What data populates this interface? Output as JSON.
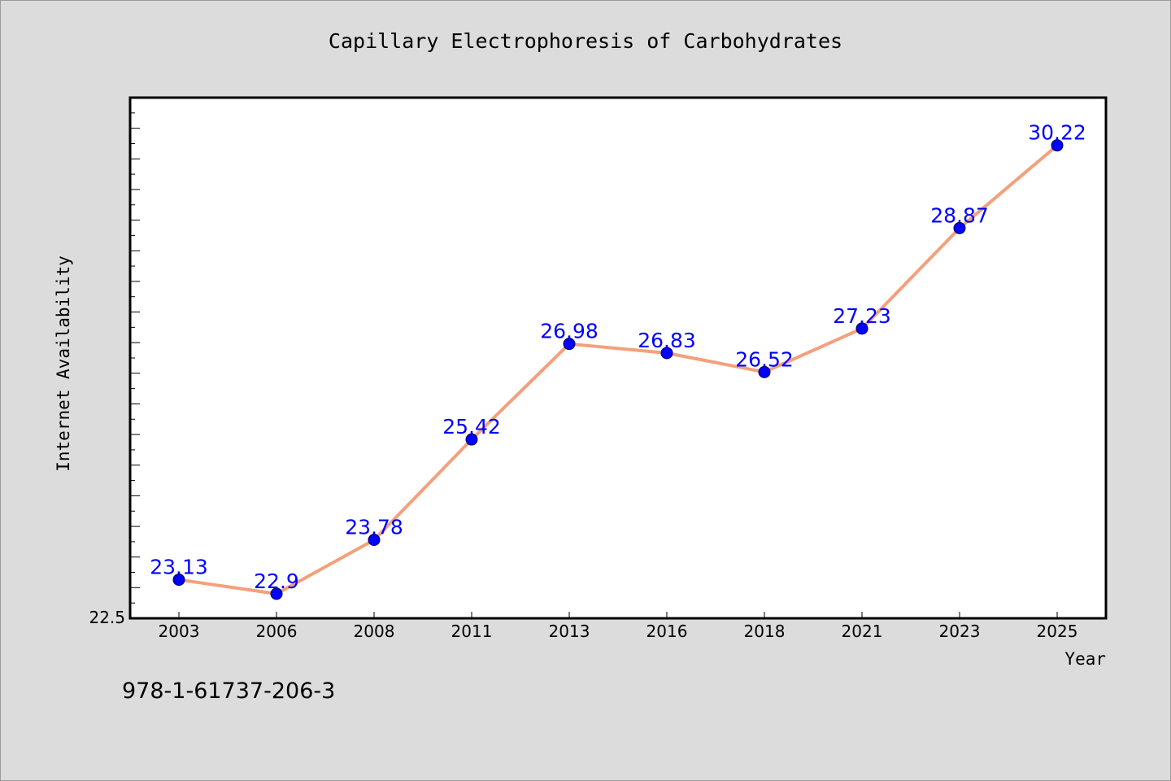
{
  "chart_data": {
    "type": "line",
    "title": "Capillary Electrophoresis of Carbohydrates",
    "xlabel": "Year",
    "ylabel": "Internet Availability",
    "categories": [
      "2003",
      "2006",
      "2008",
      "2011",
      "2013",
      "2016",
      "2018",
      "2021",
      "2023",
      "2025"
    ],
    "series": [
      {
        "values": [
          23.13,
          22.9,
          23.78,
          25.42,
          26.98,
          26.83,
          26.52,
          27.23,
          28.87,
          30.22
        ],
        "labels": [
          "23.13",
          "22.9",
          "23.78",
          "25.42",
          "26.98",
          "26.83",
          "26.52",
          "27.23",
          "28.87",
          "30.22"
        ],
        "line_color": "#f4a07c",
        "marker_color": "#0000ff"
      }
    ],
    "ylim": [
      22.5,
      31.0
    ],
    "y_tick_labels": [
      "22.5"
    ],
    "grid": false,
    "background": "#ffffff"
  },
  "footnote": "978-1-61737-206-3"
}
